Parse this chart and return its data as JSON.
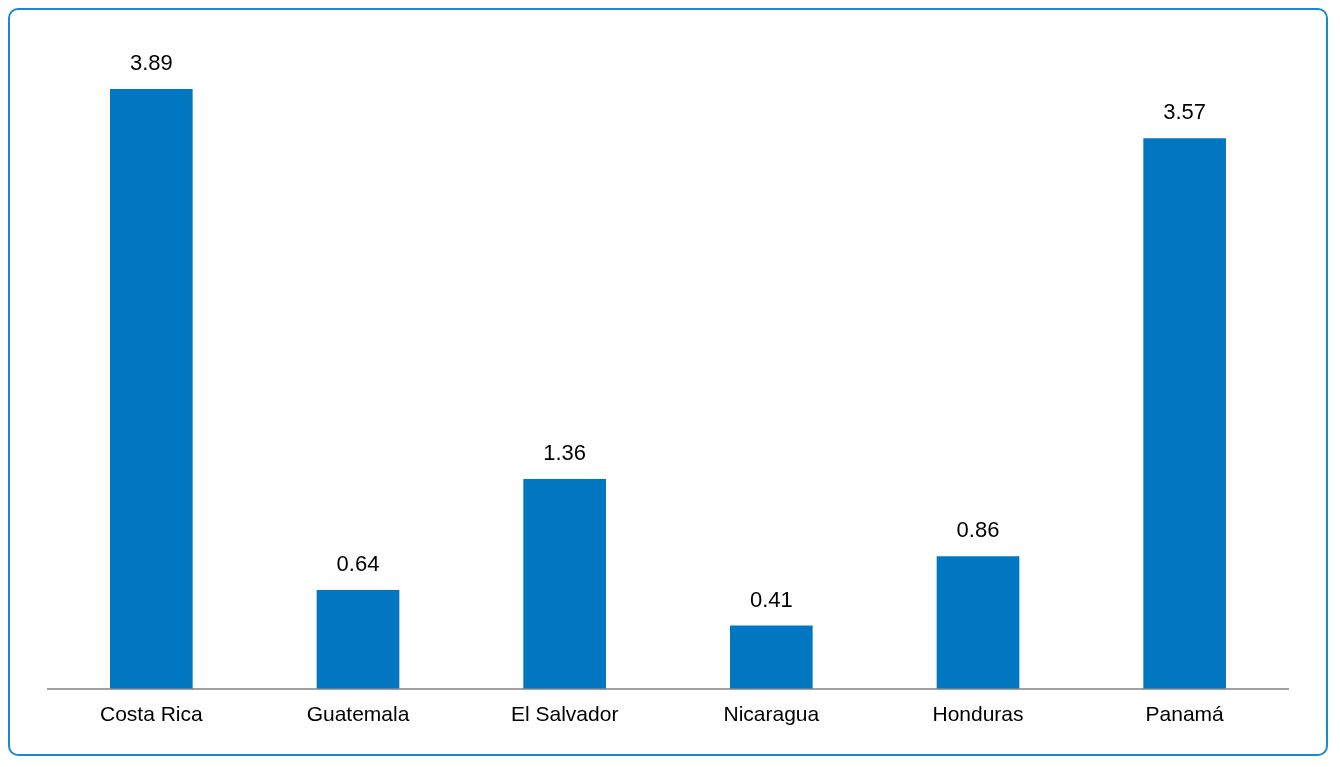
{
  "chart_data": {
    "type": "bar",
    "categories": [
      "Costa Rica",
      "Guatemala",
      "El Salvador",
      "Nicaragua",
      "Honduras",
      "Panamá"
    ],
    "values": [
      3.89,
      0.64,
      1.36,
      0.41,
      0.86,
      3.57
    ],
    "color": "#0077c0",
    "data_labels": true,
    "grid": false,
    "legend": false
  }
}
